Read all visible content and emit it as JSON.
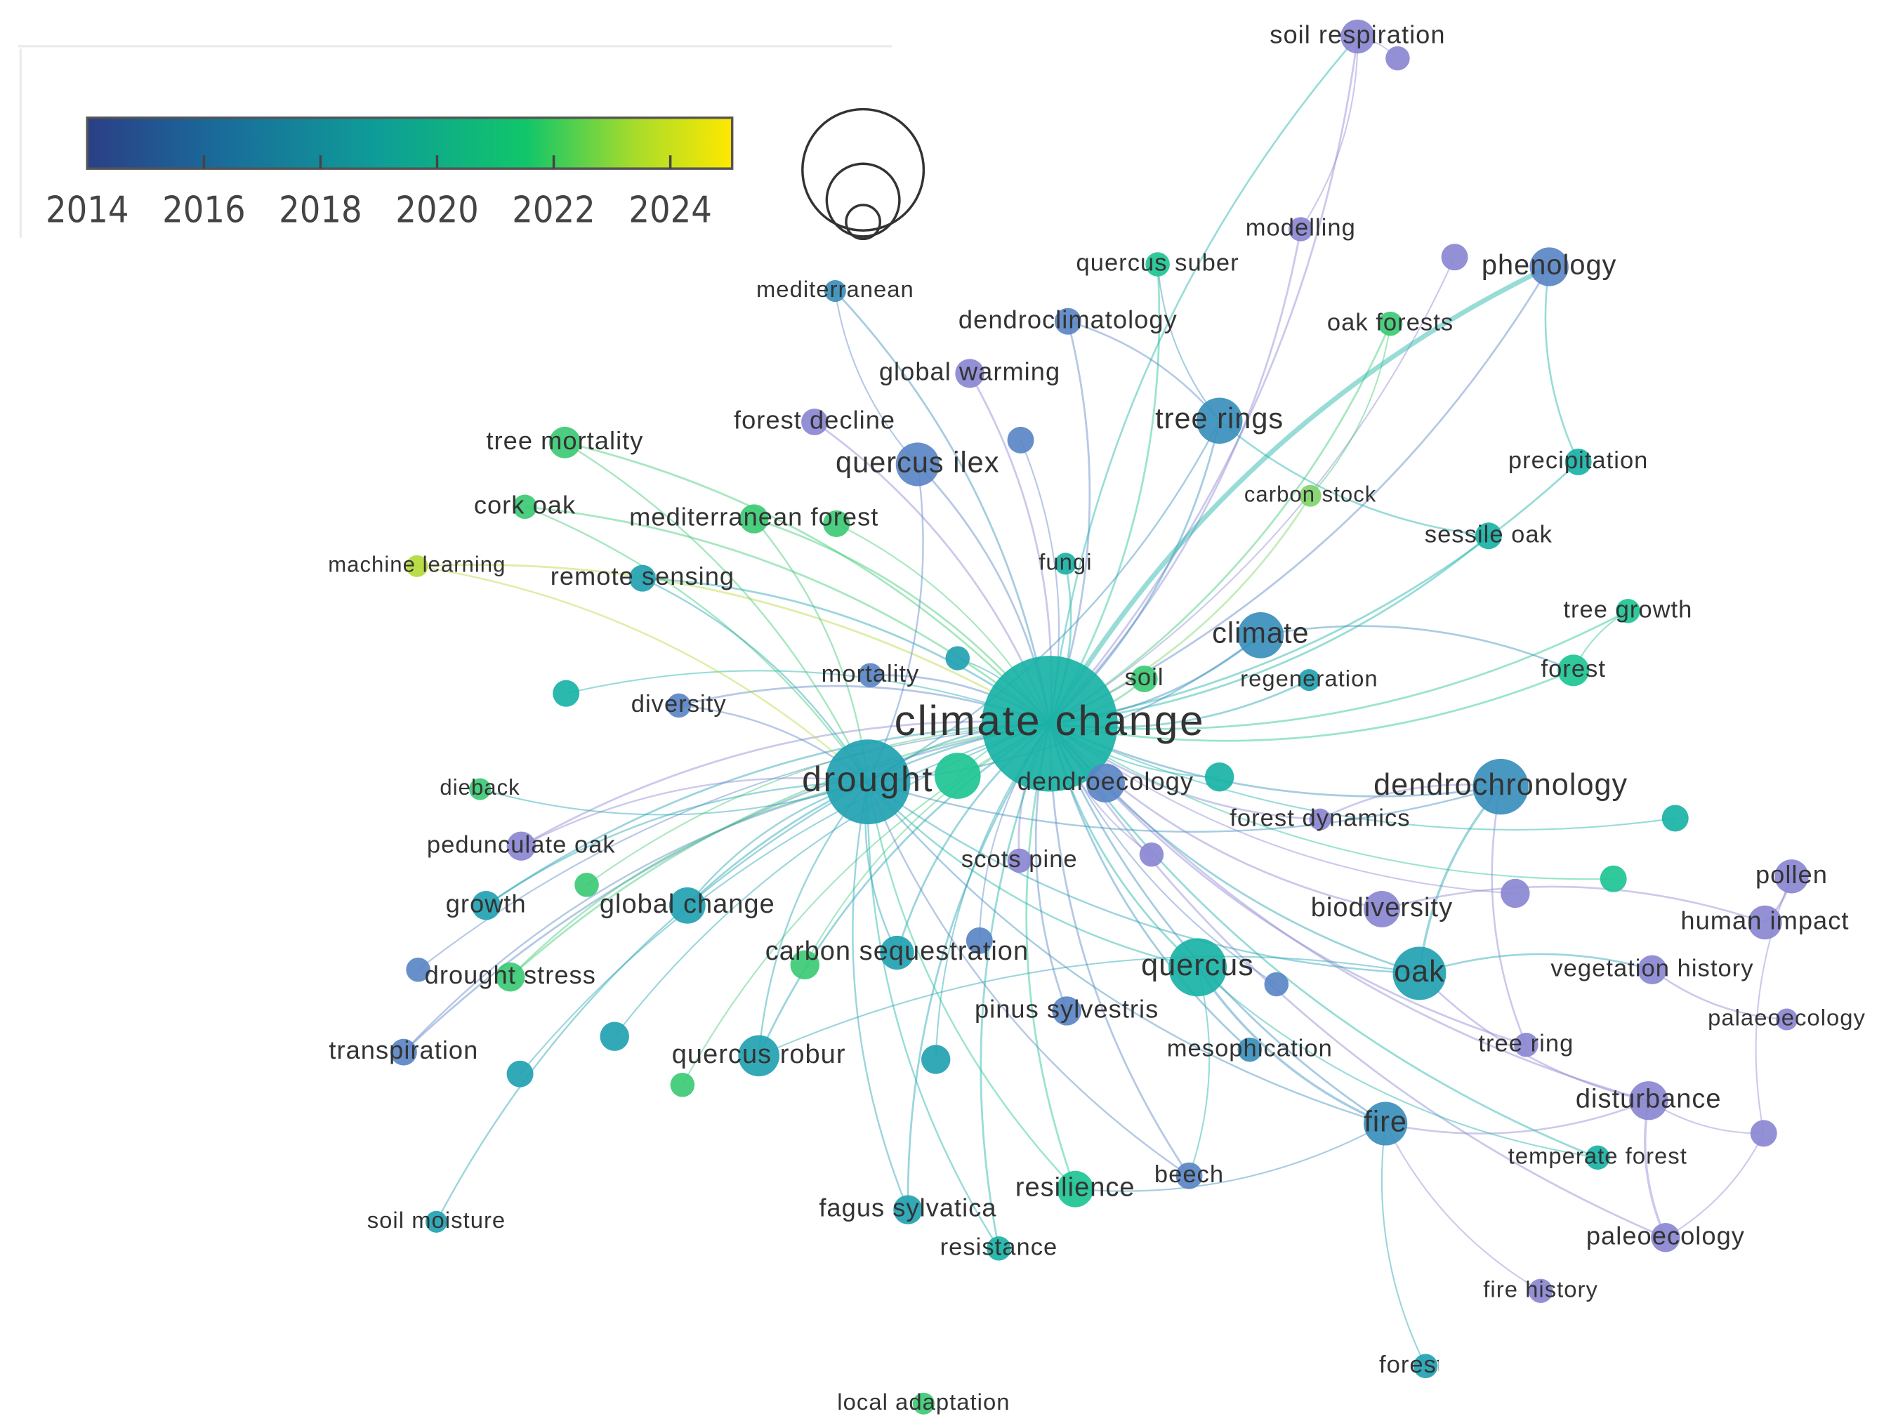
{
  "legend": {
    "ticks": [
      2014,
      2016,
      2018,
      2020,
      2022,
      2024
    ]
  },
  "nodes": [
    {
      "label": "soil respiration"
    },
    {
      "label": "modelling"
    },
    {
      "label": "quercus suber"
    },
    {
      "label": "phenology"
    },
    {
      "label": "mediterranean"
    },
    {
      "label": "dendroclimatology"
    },
    {
      "label": "oak forests"
    },
    {
      "label": "global warming"
    },
    {
      "label": "tree mortality"
    },
    {
      "label": "forest decline"
    },
    {
      "label": "tree rings"
    },
    {
      "label": "quercus ilex"
    },
    {
      "label": "precipitation"
    },
    {
      "label": "carbon stock"
    },
    {
      "label": "cork oak"
    },
    {
      "label": "mediterranean forest"
    },
    {
      "label": "sessile oak"
    },
    {
      "label": "machine learning"
    },
    {
      "label": "remote sensing"
    },
    {
      "label": "fungi"
    },
    {
      "label": "tree growth"
    },
    {
      "label": "climate"
    },
    {
      "label": "forest"
    },
    {
      "label": "regeneration"
    },
    {
      "label": "soil"
    },
    {
      "label": "mortality"
    },
    {
      "label": "diversity"
    },
    {
      "label": "climate change"
    },
    {
      "label": "drought"
    },
    {
      "label": "dendroecology"
    },
    {
      "label": "dendrochronology"
    },
    {
      "label": "dieback"
    },
    {
      "label": "forest dynamics"
    },
    {
      "label": "pedunculate oak"
    },
    {
      "label": "scots pine"
    },
    {
      "label": "growth"
    },
    {
      "label": "global change"
    },
    {
      "label": "pollen"
    },
    {
      "label": "biodiversity"
    },
    {
      "label": "human impact"
    },
    {
      "label": "carbon sequestration"
    },
    {
      "label": "quercus"
    },
    {
      "label": "oak"
    },
    {
      "label": "vegetation history"
    },
    {
      "label": "drought stress"
    },
    {
      "label": "pinus sylvestris"
    },
    {
      "label": "palaeoecology"
    },
    {
      "label": "mesophication"
    },
    {
      "label": "tree ring"
    },
    {
      "label": "transpiration"
    },
    {
      "label": "quercus robur"
    },
    {
      "label": "disturbance"
    },
    {
      "label": "fire"
    },
    {
      "label": "temperate forest"
    },
    {
      "label": "beech"
    },
    {
      "label": "resilience"
    },
    {
      "label": "fagus sylvatica"
    },
    {
      "label": "soil moisture"
    },
    {
      "label": "paleoecology"
    },
    {
      "label": "resistance"
    },
    {
      "label": "fire history"
    },
    {
      "label": "forest st"
    },
    {
      "label": "local adaptation"
    }
  ]
}
